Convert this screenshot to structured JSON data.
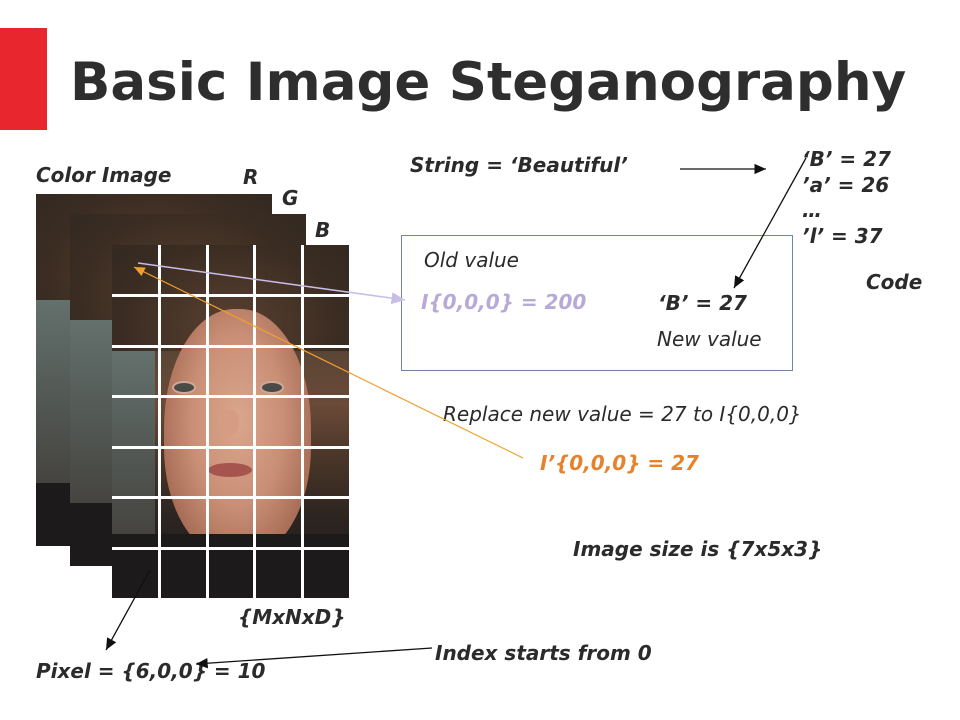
{
  "slide": {
    "title": "Basic Image Steganography",
    "accent_color": "#e8262d"
  },
  "image_panel": {
    "color_image_label": "Color Image",
    "channel_r": "R",
    "channel_g": "G",
    "channel_b": "B",
    "dimension_label": "{MxNxD}",
    "grid_rows": 7,
    "grid_cols": 5
  },
  "string_line": "String = ‘Beautiful’",
  "codes": {
    "line1": "‘B’ = 27",
    "line2": "’a’ = 26",
    "line3": "…",
    "line4": "’l’ = 37",
    "caption": "Code"
  },
  "value_box": {
    "old_value_label": "Old value",
    "old_value": "I{0,0,0} = 200",
    "old_value_color": "#b7a9d8",
    "new_code": "‘B’ = 27",
    "new_value_label": "New value"
  },
  "replace_text": "Replace new value = 27 to I{0,0,0}",
  "result": {
    "text": "I’{0,0,0} = 27",
    "color": "#e8822a"
  },
  "image_size": "Image size is {7x5x3}",
  "pixel_label": "Pixel = {6,0,0} = 10",
  "index_note": "Index starts from 0"
}
